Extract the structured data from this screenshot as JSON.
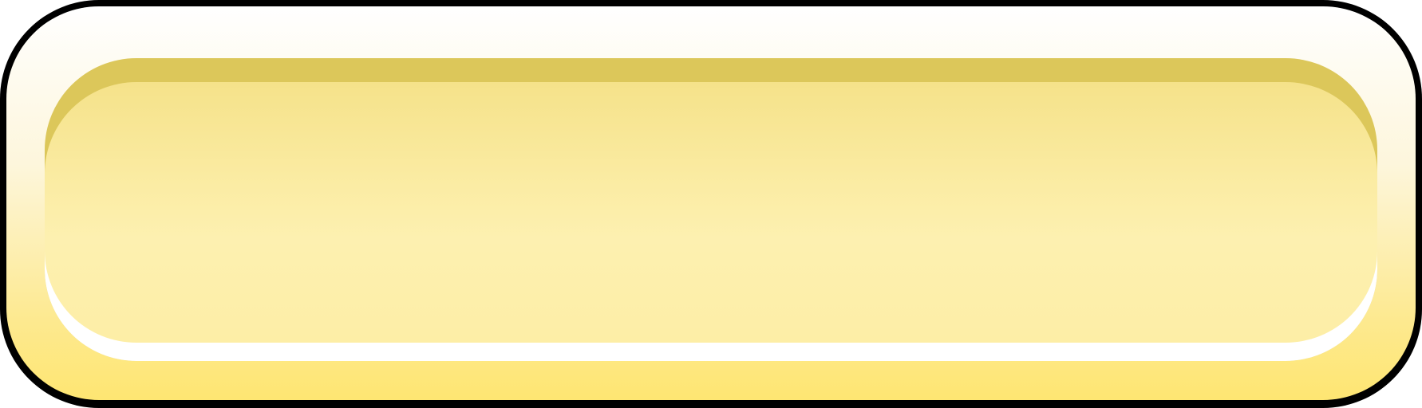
{
  "button": {
    "label": "",
    "colors": {
      "border": "#000000",
      "face_top": "#ffffff",
      "face_bottom": "#fee672",
      "inset_rim": "#dcc75a",
      "inset_fill": "#fdf0b0",
      "highlight": "#ffffff"
    }
  }
}
